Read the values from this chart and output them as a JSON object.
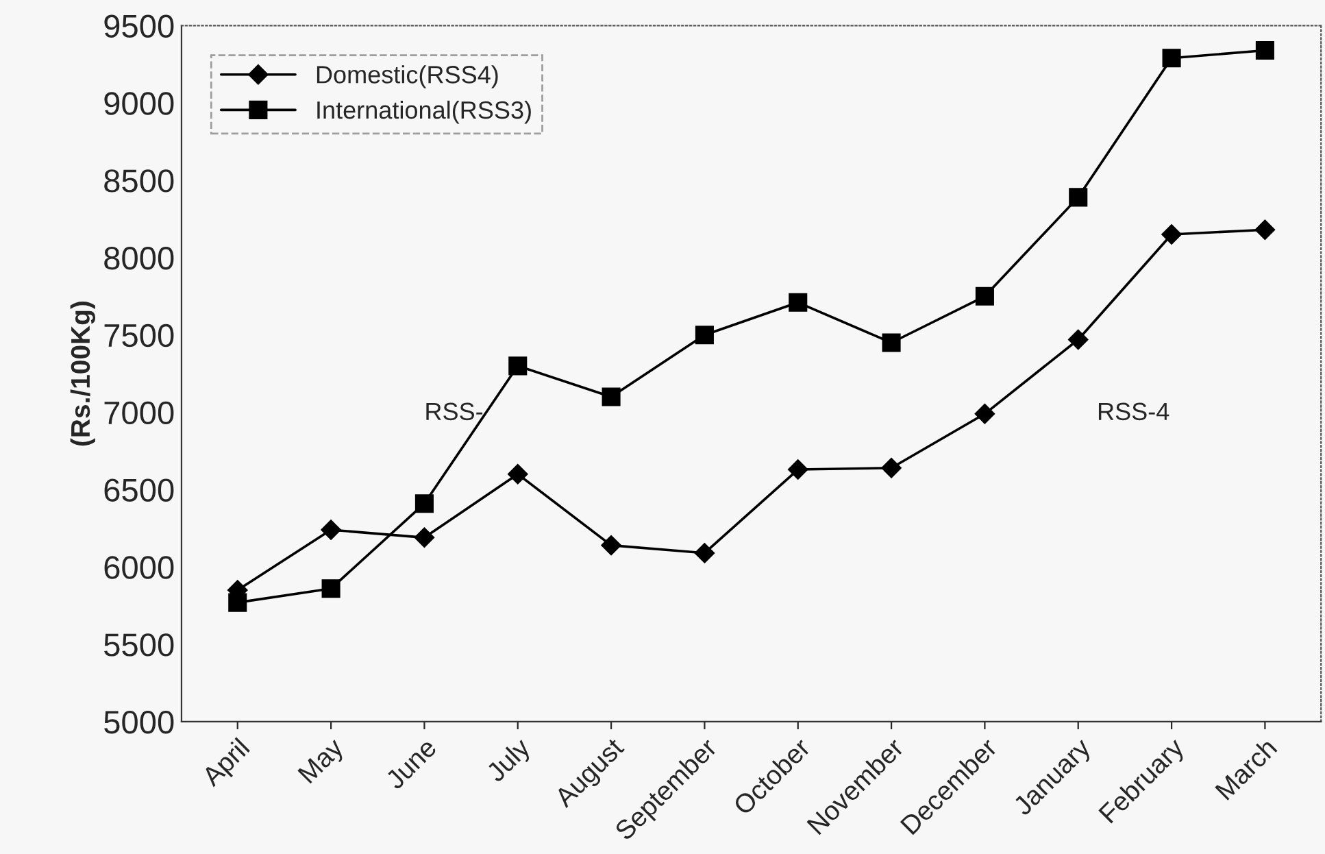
{
  "chart_data": {
    "type": "line",
    "ylabel": "(Rs./100Kg)",
    "categories": [
      "April",
      "May",
      "June",
      "July",
      "August",
      "September",
      "October",
      "November",
      "December",
      "January",
      "February",
      "March"
    ],
    "series": [
      {
        "name": "Domestic(RSS4)",
        "color": "#000000",
        "marker": "diamond",
        "values": [
          5850,
          6240,
          6190,
          6600,
          6140,
          6090,
          6630,
          6640,
          6990,
          7470,
          8150,
          8180
        ]
      },
      {
        "name": "International(RSS3)",
        "color": "#000000",
        "marker": "square",
        "values": [
          5770,
          5860,
          6410,
          7300,
          7100,
          7500,
          7710,
          7450,
          7750,
          8390,
          9290,
          9340
        ]
      }
    ],
    "annotations": [
      "RSS-",
      "RSS-4"
    ],
    "ylim": [
      5000,
      9500
    ],
    "yticks": [
      5000,
      5500,
      6000,
      6500,
      7000,
      7500,
      8000,
      8500,
      9000,
      9500
    ],
    "grid": false,
    "legend": "top left",
    "line_style": "solid"
  }
}
